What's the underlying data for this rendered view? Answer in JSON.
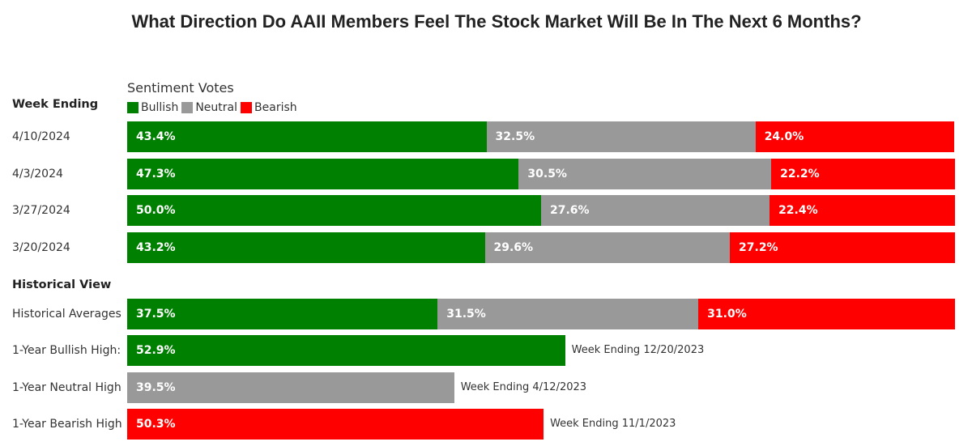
{
  "colors": {
    "bullish": "#008000",
    "neutral": "#999999",
    "bearish": "#ff0000"
  },
  "chart_data": {
    "type": "bar",
    "orientation": "horizontal",
    "stacked": true,
    "title": "What Direction Do AAII Members Feel The Stock Market Will Be In The Next 6 Months?",
    "legend_title": "Sentiment Votes",
    "legend": [
      "Bullish",
      "Neutral",
      "Bearish"
    ],
    "section_week": "Week Ending",
    "section_historical": "Historical View",
    "weeks": [
      {
        "label": "4/10/2024",
        "bullish": 43.4,
        "neutral": 32.5,
        "bearish": 24.0,
        "bullish_text": "43.4%",
        "neutral_text": "32.5%",
        "bearish_text": "24.0%"
      },
      {
        "label": "4/3/2024",
        "bullish": 47.3,
        "neutral": 30.5,
        "bearish": 22.2,
        "bullish_text": "47.3%",
        "neutral_text": "30.5%",
        "bearish_text": "22.2%"
      },
      {
        "label": "3/27/2024",
        "bullish": 50.0,
        "neutral": 27.6,
        "bearish": 22.4,
        "bullish_text": "50.0%",
        "neutral_text": "27.6%",
        "bearish_text": "22.4%"
      },
      {
        "label": "3/20/2024",
        "bullish": 43.2,
        "neutral": 29.6,
        "bearish": 27.2,
        "bullish_text": "43.2%",
        "neutral_text": "29.6%",
        "bearish_text": "27.2%"
      }
    ],
    "historical_average": {
      "label": "Historical Averages",
      "bullish": 37.5,
      "neutral": 31.5,
      "bearish": 31.0,
      "bullish_text": "37.5%",
      "neutral_text": "31.5%",
      "bearish_text": "31.0%"
    },
    "highs": [
      {
        "label": "1-Year Bullish High:",
        "series": "bullish",
        "value": 52.9,
        "value_text": "52.9%",
        "note": "Week Ending 12/20/2023"
      },
      {
        "label": "1-Year Neutral High",
        "series": "neutral",
        "value": 39.5,
        "value_text": "39.5%",
        "note": "Week Ending 4/12/2023"
      },
      {
        "label": "1-Year Bearish High",
        "series": "bearish",
        "value": 50.3,
        "value_text": "50.3%",
        "note": "Week Ending 11/1/2023"
      }
    ]
  }
}
